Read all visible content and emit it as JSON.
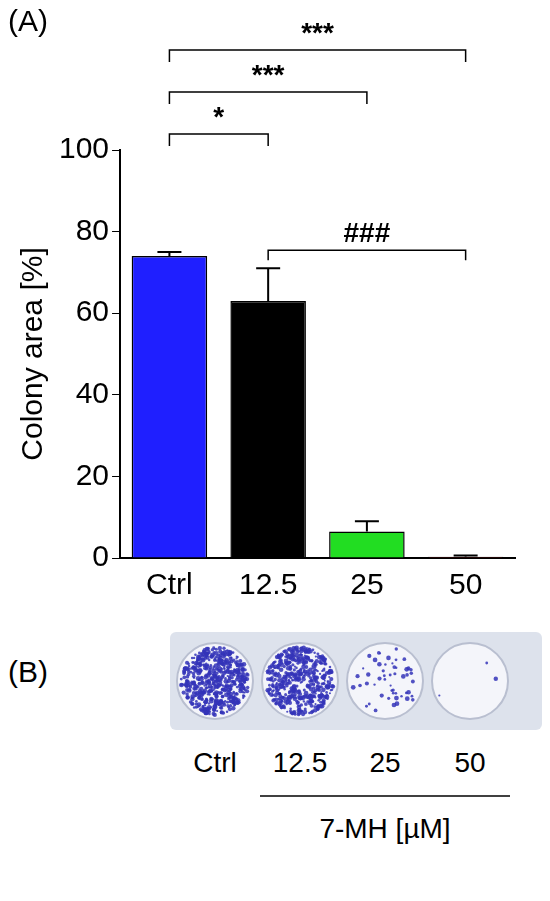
{
  "chart_data": {
    "type": "bar",
    "panel_label": "(A)",
    "categories": [
      "Ctrl",
      "12.5",
      "25",
      "50"
    ],
    "values": [
      74,
      63,
      6.5,
      0.3
    ],
    "errors": [
      1,
      8,
      2.5,
      0.3
    ],
    "colors": [
      "#1f1fff",
      "#000000",
      "#22dd22",
      "#ff2020"
    ],
    "y_label": "Colony area [%]",
    "ylim": [
      0,
      100
    ],
    "yticks": [
      0,
      20,
      40,
      60,
      80,
      100
    ],
    "grid": false,
    "significance": [
      {
        "from": "Ctrl",
        "to": "12.5",
        "label": "*"
      },
      {
        "from": "Ctrl",
        "to": "25",
        "label": "***"
      },
      {
        "from": "Ctrl",
        "to": "50",
        "label": "***"
      },
      {
        "from": "12.5",
        "to": "50",
        "label": "###"
      }
    ]
  },
  "image_panel": {
    "panel_label": "(B)",
    "wells": [
      "Ctrl",
      "12.5",
      "25",
      "50"
    ],
    "treatment_label": "7-MH [µM]"
  }
}
